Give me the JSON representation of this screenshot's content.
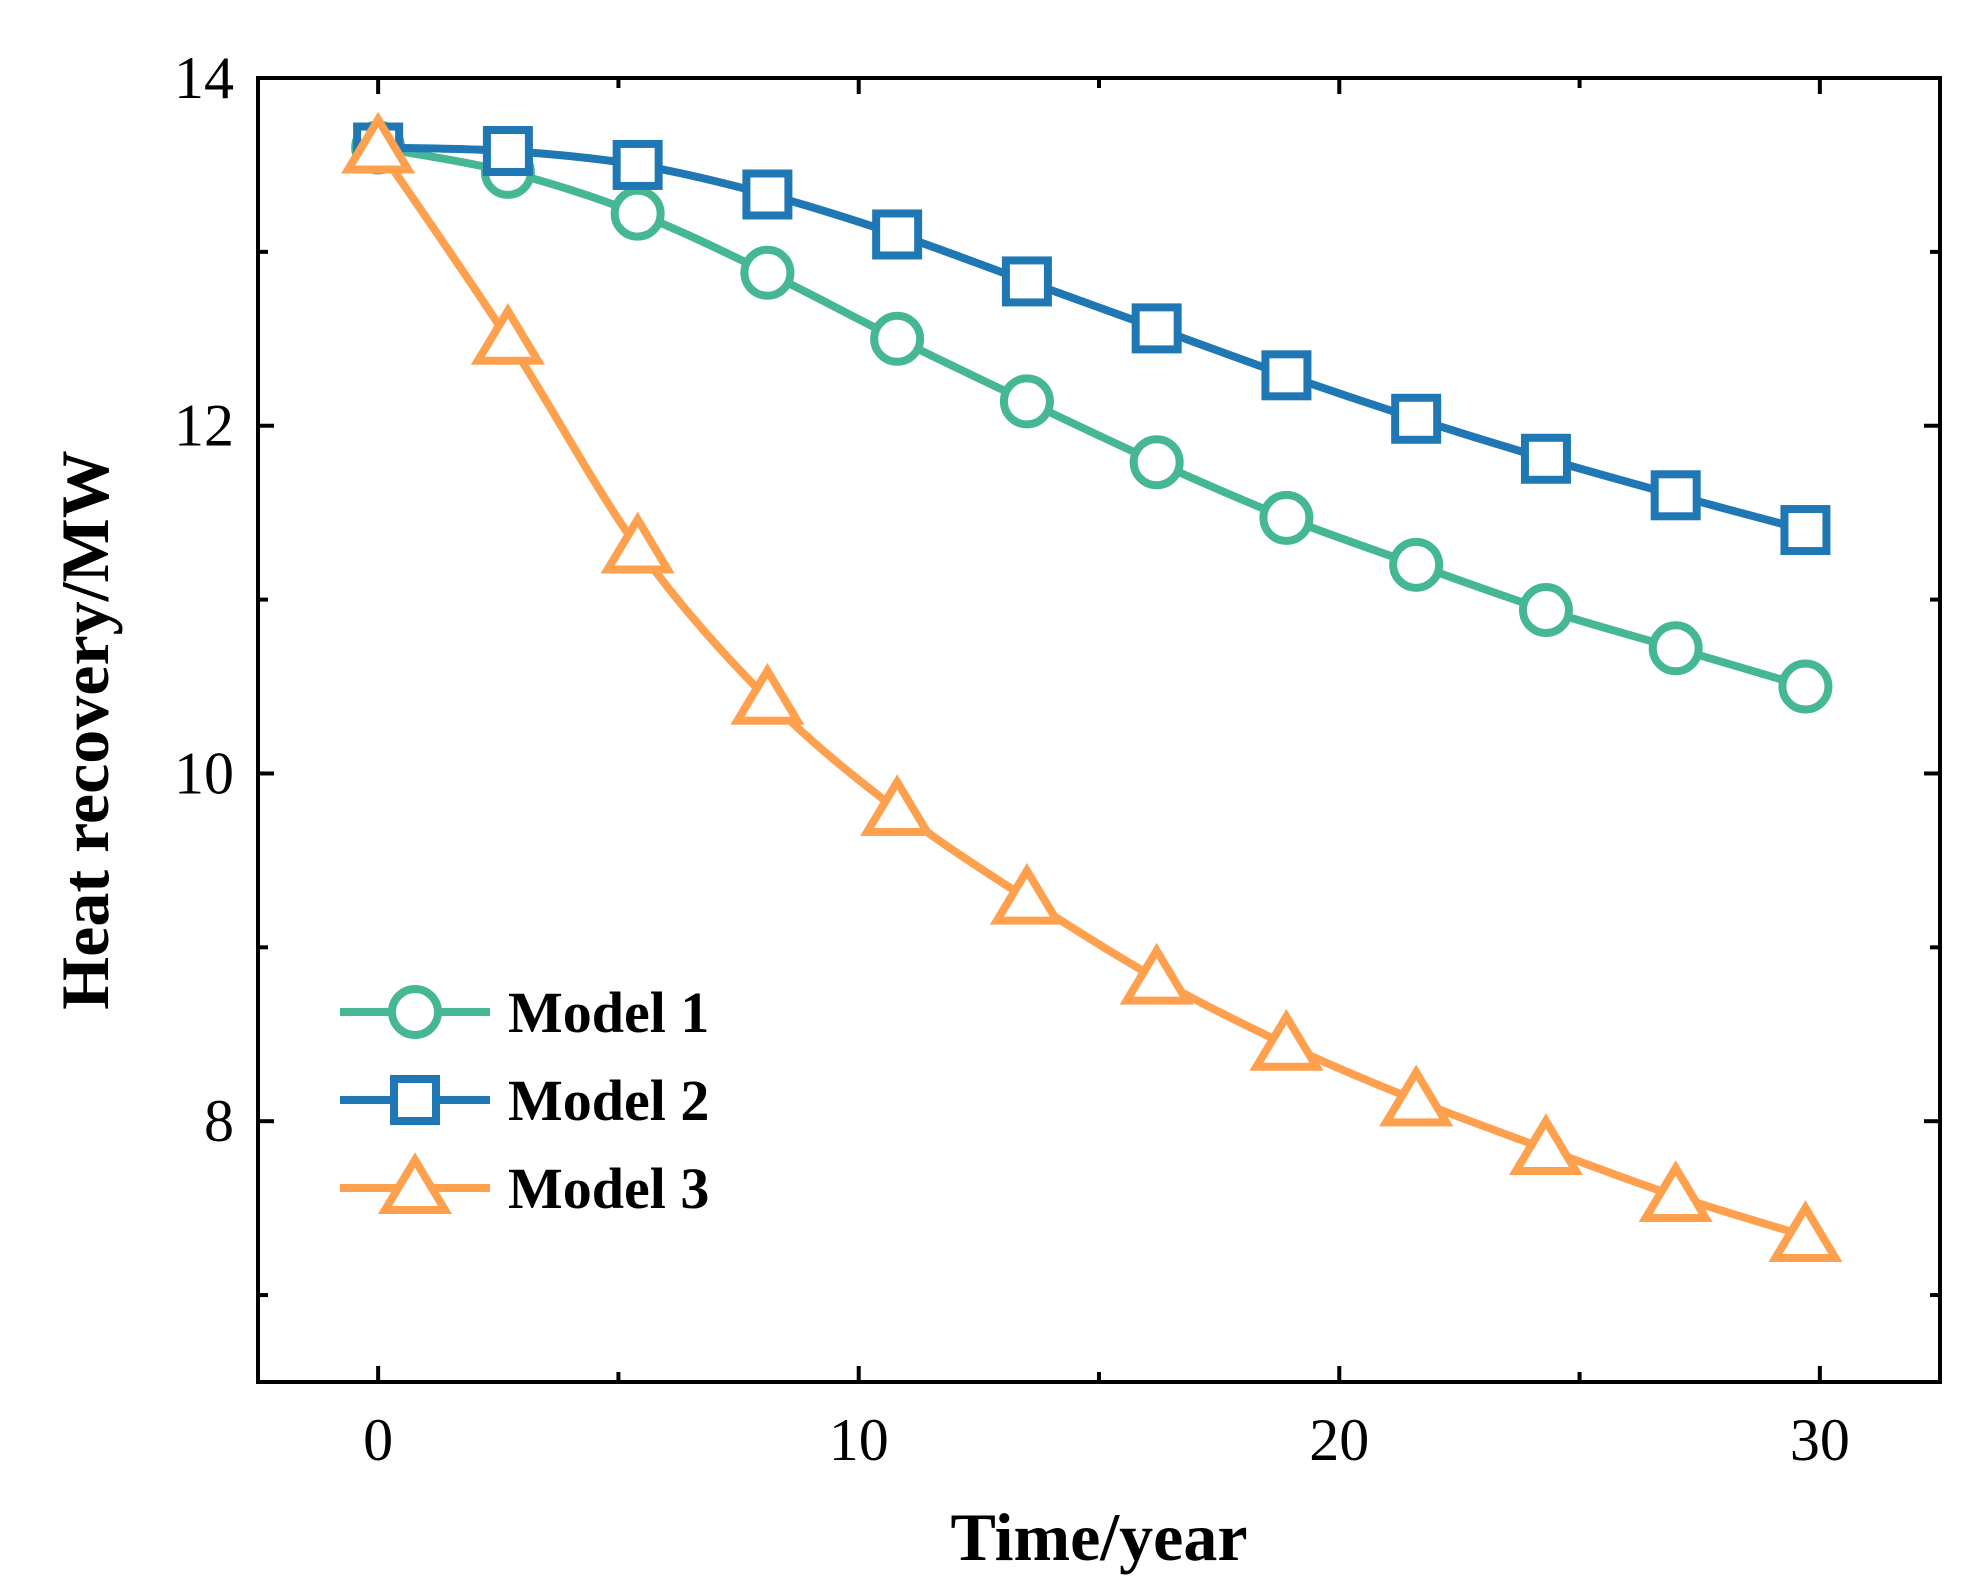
{
  "chart_data": {
    "type": "line",
    "title": "",
    "xlabel": "Time/year",
    "ylabel": "Heat recovery/MW",
    "xlim": [
      -2.5,
      32.5
    ],
    "ylim": [
      6.5,
      14
    ],
    "x_ticks": [
      0,
      10,
      20,
      30
    ],
    "x_minor_ticks": [
      5,
      15,
      25
    ],
    "y_ticks": [
      8,
      10,
      12,
      14
    ],
    "y_minor_ticks": [
      7,
      9,
      11,
      13
    ],
    "grid": false,
    "legend_position": "lower-left",
    "series": [
      {
        "name": "Model 1",
        "marker": "circle",
        "color": "#45b795",
        "x": [
          0,
          2.7,
          5.4,
          8.1,
          10.8,
          13.5,
          16.2,
          18.9,
          21.6,
          24.3,
          27.0,
          29.7
        ],
        "y": [
          13.6,
          13.46,
          13.22,
          12.88,
          12.5,
          12.14,
          11.79,
          11.47,
          11.2,
          10.94,
          10.72,
          10.5
        ]
      },
      {
        "name": "Model 2",
        "marker": "square",
        "color": "#1f77b4",
        "x": [
          0,
          2.7,
          5.4,
          8.1,
          10.8,
          13.5,
          16.2,
          18.9,
          21.6,
          24.3,
          27.0,
          29.7
        ],
        "y": [
          13.6,
          13.58,
          13.5,
          13.33,
          13.1,
          12.83,
          12.56,
          12.29,
          12.04,
          11.81,
          11.6,
          11.4
        ]
      },
      {
        "name": "Model 3",
        "marker": "triangle",
        "color": "#ffa04f",
        "x": [
          0,
          2.7,
          5.4,
          8.1,
          10.8,
          13.5,
          16.2,
          18.9,
          21.6,
          24.3,
          27.0,
          29.7
        ],
        "y": [
          13.6,
          12.5,
          11.3,
          10.43,
          9.79,
          9.28,
          8.82,
          8.44,
          8.12,
          7.84,
          7.57,
          7.34
        ]
      }
    ]
  }
}
